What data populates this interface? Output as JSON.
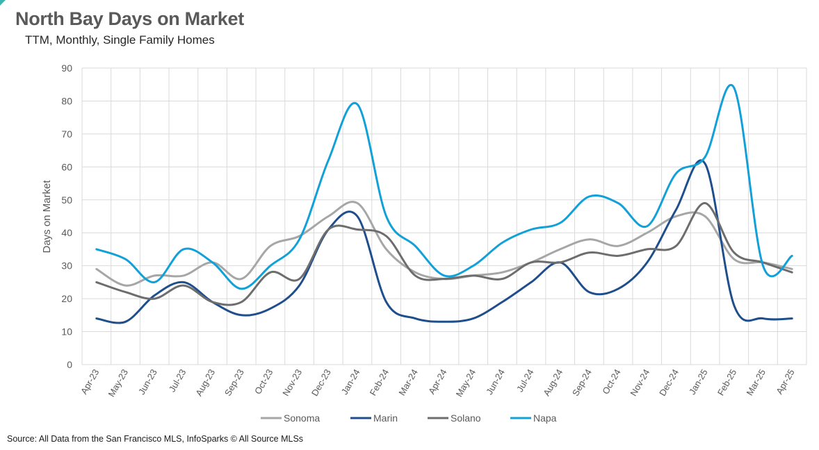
{
  "header": {
    "title": "North Bay Days on Market",
    "subtitle": "TTM, Monthly, Single Family Homes"
  },
  "footer": {
    "source": "Source: All Data from the San Francisco MLS, InfoSparks © All Source MLSs"
  },
  "chart_data": {
    "type": "line",
    "title": "North Bay Days on Market",
    "subtitle": "TTM, Monthly, Single Family Homes",
    "xlabel": "",
    "ylabel": "Days on Market",
    "ylim": [
      0,
      90
    ],
    "yticks": [
      0,
      10,
      20,
      30,
      40,
      50,
      60,
      70,
      80,
      90
    ],
    "grid": true,
    "legend": "bottom",
    "categories": [
      "Apr-23",
      "May-23",
      "Jun-23",
      "Jul-23",
      "Aug-23",
      "Sep-23",
      "Oct-23",
      "Nov-23",
      "Dec-23",
      "Jan-24",
      "Feb-24",
      "Mar-24",
      "Apr-24",
      "May-24",
      "Jun-24",
      "Jul-24",
      "Aug-24",
      "Sep-24",
      "Oct-24",
      "Nov-24",
      "Dec-24",
      "Jan-25",
      "Feb-25",
      "Mar-25",
      "Apr-25"
    ],
    "series": [
      {
        "name": "Sonoma",
        "color": "#a6a6a6",
        "values": [
          29,
          24,
          27,
          27,
          31,
          26,
          36,
          39,
          45,
          49,
          35,
          28,
          26,
          27,
          28,
          31,
          35,
          38,
          36,
          40,
          45,
          45,
          32,
          31,
          29
        ]
      },
      {
        "name": "Marin",
        "color": "#1f4e8c",
        "values": [
          14,
          13,
          21,
          25,
          19,
          15,
          17,
          24,
          41,
          45,
          19,
          14,
          13,
          14,
          19,
          25,
          31,
          22,
          23,
          31,
          47,
          61,
          18,
          14,
          14
        ]
      },
      {
        "name": "Solano",
        "color": "#6d6d6d",
        "values": [
          25,
          22,
          20,
          24,
          19,
          19,
          28,
          26,
          41,
          41,
          39,
          27,
          26,
          27,
          26,
          31,
          31,
          34,
          33,
          35,
          36,
          49,
          34,
          31,
          28
        ]
      },
      {
        "name": "Napa",
        "color": "#11a0d7",
        "values": [
          35,
          32,
          25,
          35,
          31,
          23,
          30,
          38,
          62,
          79,
          45,
          36,
          27,
          30,
          37,
          41,
          43,
          51,
          49,
          42,
          58,
          63,
          84,
          30,
          33
        ]
      }
    ]
  }
}
